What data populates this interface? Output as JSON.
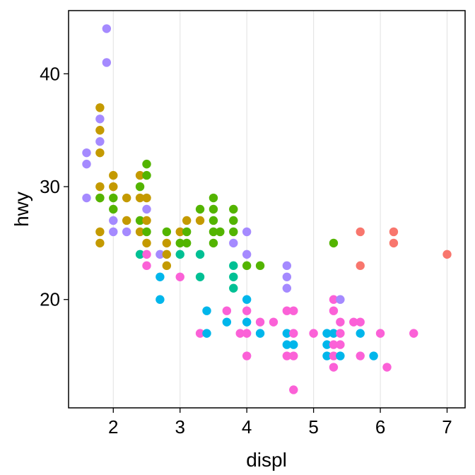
{
  "chart_data": {
    "type": "scatter",
    "xlabel": "displ",
    "ylabel": "hwy",
    "xlim": [
      1.33,
      7.27
    ],
    "ylim": [
      10.4,
      45.6
    ],
    "x_ticks": [
      2,
      3,
      4,
      5,
      6,
      7
    ],
    "y_ticks": [
      20,
      30,
      40
    ],
    "grid": "vertical",
    "legend": "none",
    "colors": {
      "red": "#F8766D",
      "gold": "#C49A00",
      "green": "#53B400",
      "teal": "#00C094",
      "blue": "#00B6EB",
      "purple": "#A58AFF",
      "pink": "#FB61D7"
    },
    "points": [
      {
        "x": 1.6,
        "y": 33,
        "color": "purple"
      },
      {
        "x": 1.6,
        "y": 32,
        "color": "purple"
      },
      {
        "x": 1.6,
        "y": 29,
        "color": "purple"
      },
      {
        "x": 1.8,
        "y": 37,
        "color": "gold"
      },
      {
        "x": 1.8,
        "y": 36,
        "color": "purple"
      },
      {
        "x": 1.8,
        "y": 35,
        "color": "gold"
      },
      {
        "x": 1.8,
        "y": 34,
        "color": "purple"
      },
      {
        "x": 1.8,
        "y": 33,
        "color": "gold"
      },
      {
        "x": 1.8,
        "y": 30,
        "color": "gold"
      },
      {
        "x": 1.8,
        "y": 29,
        "color": "gold"
      },
      {
        "x": 1.8,
        "y": 29,
        "color": "green"
      },
      {
        "x": 1.8,
        "y": 26,
        "color": "gold"
      },
      {
        "x": 1.8,
        "y": 25,
        "color": "gold"
      },
      {
        "x": 1.9,
        "y": 44,
        "color": "purple"
      },
      {
        "x": 1.9,
        "y": 41,
        "color": "purple"
      },
      {
        "x": 2.0,
        "y": 31,
        "color": "gold"
      },
      {
        "x": 2.0,
        "y": 30,
        "color": "gold"
      },
      {
        "x": 2.0,
        "y": 29,
        "color": "green"
      },
      {
        "x": 2.0,
        "y": 28,
        "color": "green"
      },
      {
        "x": 2.0,
        "y": 27,
        "color": "purple"
      },
      {
        "x": 2.0,
        "y": 26,
        "color": "purple"
      },
      {
        "x": 2.2,
        "y": 29,
        "color": "gold"
      },
      {
        "x": 2.2,
        "y": 27,
        "color": "gold"
      },
      {
        "x": 2.2,
        "y": 26,
        "color": "purple"
      },
      {
        "x": 2.4,
        "y": 31,
        "color": "gold"
      },
      {
        "x": 2.4,
        "y": 30,
        "color": "green"
      },
      {
        "x": 2.4,
        "y": 29,
        "color": "gold"
      },
      {
        "x": 2.4,
        "y": 27,
        "color": "green"
      },
      {
        "x": 2.4,
        "y": 26,
        "color": "gold"
      },
      {
        "x": 2.4,
        "y": 24,
        "color": "teal"
      },
      {
        "x": 2.5,
        "y": 32,
        "color": "green"
      },
      {
        "x": 2.5,
        "y": 31,
        "color": "green"
      },
      {
        "x": 2.5,
        "y": 29,
        "color": "gold"
      },
      {
        "x": 2.5,
        "y": 28,
        "color": "purple"
      },
      {
        "x": 2.5,
        "y": 27,
        "color": "gold"
      },
      {
        "x": 2.5,
        "y": 26,
        "color": "green"
      },
      {
        "x": 2.5,
        "y": 25,
        "color": "gold"
      },
      {
        "x": 2.5,
        "y": 24,
        "color": "pink"
      },
      {
        "x": 2.5,
        "y": 23,
        "color": "pink"
      },
      {
        "x": 2.7,
        "y": 24,
        "color": "purple"
      },
      {
        "x": 2.7,
        "y": 22,
        "color": "blue"
      },
      {
        "x": 2.7,
        "y": 20,
        "color": "blue"
      },
      {
        "x": 2.8,
        "y": 26,
        "color": "green"
      },
      {
        "x": 2.8,
        "y": 25,
        "color": "gold"
      },
      {
        "x": 2.8,
        "y": 24,
        "color": "gold"
      },
      {
        "x": 2.8,
        "y": 23,
        "color": "gold"
      },
      {
        "x": 3.0,
        "y": 26,
        "color": "gold"
      },
      {
        "x": 3.0,
        "y": 25,
        "color": "green"
      },
      {
        "x": 3.0,
        "y": 24,
        "color": "teal"
      },
      {
        "x": 3.0,
        "y": 22,
        "color": "pink"
      },
      {
        "x": 3.1,
        "y": 27,
        "color": "gold"
      },
      {
        "x": 3.1,
        "y": 26,
        "color": "green"
      },
      {
        "x": 3.1,
        "y": 25,
        "color": "green"
      },
      {
        "x": 3.3,
        "y": 28,
        "color": "green"
      },
      {
        "x": 3.3,
        "y": 27,
        "color": "gold"
      },
      {
        "x": 3.3,
        "y": 24,
        "color": "teal"
      },
      {
        "x": 3.3,
        "y": 22,
        "color": "teal"
      },
      {
        "x": 3.3,
        "y": 17,
        "color": "pink"
      },
      {
        "x": 3.4,
        "y": 19,
        "color": "blue"
      },
      {
        "x": 3.4,
        "y": 17,
        "color": "blue"
      },
      {
        "x": 3.5,
        "y": 29,
        "color": "green"
      },
      {
        "x": 3.5,
        "y": 28,
        "color": "green"
      },
      {
        "x": 3.5,
        "y": 27,
        "color": "green"
      },
      {
        "x": 3.5,
        "y": 26,
        "color": "green"
      },
      {
        "x": 3.5,
        "y": 25,
        "color": "green"
      },
      {
        "x": 3.6,
        "y": 26,
        "color": "green"
      },
      {
        "x": 3.7,
        "y": 19,
        "color": "pink"
      },
      {
        "x": 3.7,
        "y": 18,
        "color": "blue"
      },
      {
        "x": 3.8,
        "y": 28,
        "color": "green"
      },
      {
        "x": 3.8,
        "y": 27,
        "color": "green"
      },
      {
        "x": 3.8,
        "y": 26,
        "color": "green"
      },
      {
        "x": 3.8,
        "y": 25,
        "color": "purple"
      },
      {
        "x": 3.8,
        "y": 23,
        "color": "teal"
      },
      {
        "x": 3.8,
        "y": 22,
        "color": "teal"
      },
      {
        "x": 3.8,
        "y": 21,
        "color": "teal"
      },
      {
        "x": 3.9,
        "y": 17,
        "color": "pink"
      },
      {
        "x": 4.0,
        "y": 26,
        "color": "purple"
      },
      {
        "x": 4.0,
        "y": 24,
        "color": "purple"
      },
      {
        "x": 4.0,
        "y": 23,
        "color": "green"
      },
      {
        "x": 4.0,
        "y": 20,
        "color": "blue"
      },
      {
        "x": 4.0,
        "y": 19,
        "color": "pink"
      },
      {
        "x": 4.0,
        "y": 18,
        "color": "blue"
      },
      {
        "x": 4.0,
        "y": 17,
        "color": "pink"
      },
      {
        "x": 4.0,
        "y": 15,
        "color": "pink"
      },
      {
        "x": 4.2,
        "y": 23,
        "color": "green"
      },
      {
        "x": 4.2,
        "y": 18,
        "color": "pink"
      },
      {
        "x": 4.2,
        "y": 17,
        "color": "blue"
      },
      {
        "x": 4.4,
        "y": 18,
        "color": "pink"
      },
      {
        "x": 4.6,
        "y": 23,
        "color": "purple"
      },
      {
        "x": 4.6,
        "y": 22,
        "color": "purple"
      },
      {
        "x": 4.6,
        "y": 21,
        "color": "purple"
      },
      {
        "x": 4.6,
        "y": 19,
        "color": "pink"
      },
      {
        "x": 4.6,
        "y": 17,
        "color": "blue"
      },
      {
        "x": 4.6,
        "y": 16,
        "color": "blue"
      },
      {
        "x": 4.6,
        "y": 15,
        "color": "pink"
      },
      {
        "x": 4.7,
        "y": 19,
        "color": "pink"
      },
      {
        "x": 4.7,
        "y": 17,
        "color": "pink"
      },
      {
        "x": 4.7,
        "y": 16,
        "color": "blue"
      },
      {
        "x": 4.7,
        "y": 15,
        "color": "pink"
      },
      {
        "x": 4.7,
        "y": 12,
        "color": "pink"
      },
      {
        "x": 5.0,
        "y": 17,
        "color": "pink"
      },
      {
        "x": 5.2,
        "y": 17,
        "color": "blue"
      },
      {
        "x": 5.2,
        "y": 16,
        "color": "blue"
      },
      {
        "x": 5.2,
        "y": 15,
        "color": "blue"
      },
      {
        "x": 5.3,
        "y": 25,
        "color": "green"
      },
      {
        "x": 5.3,
        "y": 20,
        "color": "pink"
      },
      {
        "x": 5.3,
        "y": 19,
        "color": "pink"
      },
      {
        "x": 5.3,
        "y": 17,
        "color": "blue"
      },
      {
        "x": 5.3,
        "y": 16,
        "color": "pink"
      },
      {
        "x": 5.3,
        "y": 15,
        "color": "pink"
      },
      {
        "x": 5.3,
        "y": 14,
        "color": "pink"
      },
      {
        "x": 5.4,
        "y": 20,
        "color": "purple"
      },
      {
        "x": 5.4,
        "y": 18,
        "color": "pink"
      },
      {
        "x": 5.4,
        "y": 17,
        "color": "pink"
      },
      {
        "x": 5.4,
        "y": 16,
        "color": "pink"
      },
      {
        "x": 5.4,
        "y": 15,
        "color": "blue"
      },
      {
        "x": 5.6,
        "y": 18,
        "color": "pink"
      },
      {
        "x": 5.7,
        "y": 26,
        "color": "red"
      },
      {
        "x": 5.7,
        "y": 23,
        "color": "red"
      },
      {
        "x": 5.7,
        "y": 18,
        "color": "pink"
      },
      {
        "x": 5.7,
        "y": 17,
        "color": "blue"
      },
      {
        "x": 5.7,
        "y": 15,
        "color": "pink"
      },
      {
        "x": 5.9,
        "y": 15,
        "color": "blue"
      },
      {
        "x": 6.0,
        "y": 17,
        "color": "pink"
      },
      {
        "x": 6.1,
        "y": 14,
        "color": "pink"
      },
      {
        "x": 6.2,
        "y": 26,
        "color": "red"
      },
      {
        "x": 6.2,
        "y": 25,
        "color": "red"
      },
      {
        "x": 6.5,
        "y": 17,
        "color": "pink"
      },
      {
        "x": 7.0,
        "y": 24,
        "color": "red"
      }
    ]
  }
}
